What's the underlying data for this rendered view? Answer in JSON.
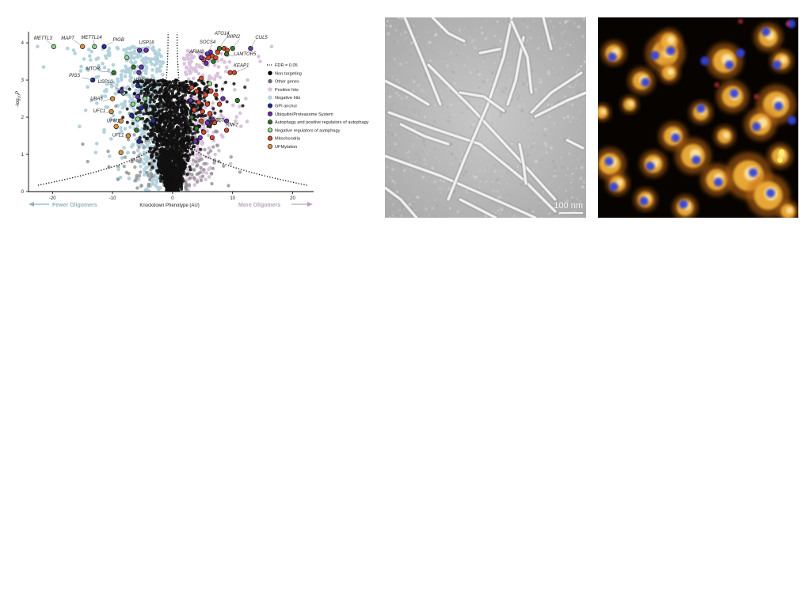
{
  "figure": {
    "panel_volcano": {
      "xlabel": "Knockdown Phenotype (AU)",
      "ylabel_prefix": "-log",
      "ylabel_sub": "10",
      "ylabel_suffix": "P",
      "arrow_left_label": "Fewer Oligomers",
      "arrow_right_label": "More Oligomers",
      "threshold_label": "FDR = 0.05"
    },
    "panel_em": {
      "scalebar_label": "100 nm"
    }
  },
  "colors": {
    "non_targeting": "#000000",
    "other_genes": "#6e6e6e",
    "positive_hits": "#d9c2dc",
    "negative_hits": "#b3d2dd",
    "gpi_anchor": "#1f2a9e",
    "ubiquitin": "#6b2fb3",
    "autophagy_pos": "#2f7a2b",
    "autophagy_neg": "#8fd98a",
    "mitochondria": "#d9472b",
    "ufmylation": "#e8913a",
    "arrow_left": "#8fb3bf",
    "arrow_right": "#b8a3bd"
  },
  "chart_data": {
    "type": "scatter",
    "xlabel": "Knockdown Phenotype (AU)",
    "ylabel": "-log10 P",
    "xlim": [
      -24,
      23.5
    ],
    "ylim": [
      0,
      4.3
    ],
    "xticks": [
      -20,
      -10,
      0,
      10,
      20
    ],
    "yticks": [
      0,
      1,
      2,
      3,
      4
    ],
    "grid": false,
    "legend_position": "right",
    "legend": [
      {
        "key": "fdr",
        "label": "FDR = 0.05",
        "style": "dotted-line"
      },
      {
        "key": "non_targeting",
        "label": "Non-targeting"
      },
      {
        "key": "other_genes",
        "label": "Other genes"
      },
      {
        "key": "positive_hits",
        "label": "Positive hits"
      },
      {
        "key": "negative_hits",
        "label": "Negative hits"
      },
      {
        "key": "gpi_anchor",
        "label": "GPI anchor"
      },
      {
        "key": "ubiquitin",
        "label": "Ubiquitin/Proteasome System"
      },
      {
        "key": "autophagy_pos",
        "label": "Autophagy and positive regulators of autophagy"
      },
      {
        "key": "autophagy_neg",
        "label": "Negative regulators of autophagy"
      },
      {
        "key": "mitochondria",
        "label": "Mitochondria"
      },
      {
        "key": "ufmylation",
        "label": "UFMylation"
      }
    ],
    "labeled_genes": [
      {
        "gene": "METTL3",
        "x": -19.8,
        "y": 3.9,
        "category": "autophagy_neg"
      },
      {
        "gene": "MAPT",
        "x": -15.0,
        "y": 3.9,
        "category": "ufmylation"
      },
      {
        "gene": "METTL14",
        "x": -13.0,
        "y": 3.9,
        "category": "autophagy_neg"
      },
      {
        "gene": "PIGB",
        "x": -11.4,
        "y": 3.9,
        "category": "gpi_anchor"
      },
      {
        "gene": "USP16",
        "x": -4.4,
        "y": 3.8,
        "category": "ubiquitin"
      },
      {
        "gene": "MTOR",
        "x": -9.8,
        "y": 3.2,
        "category": "autophagy_pos"
      },
      {
        "gene": "USP22",
        "x": -5.6,
        "y": 3.2,
        "category": "ubiquitin"
      },
      {
        "gene": "PIGS",
        "x": -13.3,
        "y": 3.0,
        "category": "gpi_anchor"
      },
      {
        "gene": "USP10",
        "x": -8.5,
        "y": 2.7,
        "category": "ubiquitin"
      },
      {
        "gene": "UBA5",
        "x": -10.0,
        "y": 2.5,
        "category": "ufmylation"
      },
      {
        "gene": "UFC1",
        "x": -10.2,
        "y": 2.15,
        "category": "ufmylation"
      },
      {
        "gene": "UFM1",
        "x": -8.6,
        "y": 1.9,
        "category": "ufmylation"
      },
      {
        "gene": "UFL1",
        "x": -7.4,
        "y": 1.5,
        "category": "ufmylation"
      },
      {
        "gene": "ARIH2",
        "x": 4.8,
        "y": 3.6,
        "category": "ubiquitin"
      },
      {
        "gene": "SOCS4",
        "x": 5.8,
        "y": 3.7,
        "category": "ubiquitin"
      },
      {
        "gene": "ATG14",
        "x": 7.8,
        "y": 3.85,
        "category": "autophagy_pos"
      },
      {
        "gene": "WIPI2",
        "x": 10.0,
        "y": 3.85,
        "category": "autophagy_pos"
      },
      {
        "gene": "CUL5",
        "x": 13.0,
        "y": 3.85,
        "category": "ubiquitin"
      },
      {
        "gene": "LAMTOR5",
        "x": 9.0,
        "y": 3.7,
        "category": "autophagy_pos"
      },
      {
        "gene": "KEAP1",
        "x": 10.3,
        "y": 3.2,
        "category": "mitochondria"
      },
      {
        "gene": "SOCS5",
        "x": 6.6,
        "y": 1.95,
        "category": "ubiquitin"
      },
      {
        "gene": "RNF7",
        "x": 9.0,
        "y": 1.9,
        "category": "ubiquitin"
      }
    ],
    "highlighted_points": [
      {
        "x": -5.5,
        "y": 3.8,
        "category": "ubiquitin"
      },
      {
        "x": -5.2,
        "y": 3.35,
        "category": "ubiquitin"
      },
      {
        "x": -6.5,
        "y": 3.35,
        "category": "autophagy_pos"
      },
      {
        "x": -7.6,
        "y": 3.6,
        "category": "autophagy_neg"
      },
      {
        "x": -5.8,
        "y": 2.85,
        "category": "gpi_anchor"
      },
      {
        "x": -8.2,
        "y": 2.65,
        "category": "autophagy_neg"
      },
      {
        "x": -5.8,
        "y": 2.55,
        "category": "ubiquitin"
      },
      {
        "x": -4.6,
        "y": 2.5,
        "category": "autophagy_neg"
      },
      {
        "x": -6.6,
        "y": 2.35,
        "category": "autophagy_neg"
      },
      {
        "x": -5.2,
        "y": 2.25,
        "category": "gpi_anchor"
      },
      {
        "x": -6.8,
        "y": 2.05,
        "category": "gpi_anchor"
      },
      {
        "x": -5.8,
        "y": 1.95,
        "category": "autophagy_neg"
      },
      {
        "x": -3.2,
        "y": 1.9,
        "category": "gpi_anchor"
      },
      {
        "x": -9.4,
        "y": 1.75,
        "category": "ufmylation"
      },
      {
        "x": -6.0,
        "y": 1.65,
        "category": "autophagy_pos"
      },
      {
        "x": -5.6,
        "y": 1.35,
        "category": "gpi_anchor"
      },
      {
        "x": -8.6,
        "y": 1.05,
        "category": "ufmylation"
      },
      {
        "x": 5.2,
        "y": 3.55,
        "category": "mitochondria"
      },
      {
        "x": 6.0,
        "y": 3.6,
        "category": "mitochondria"
      },
      {
        "x": 6.6,
        "y": 3.65,
        "category": "mitochondria"
      },
      {
        "x": 7.2,
        "y": 3.6,
        "category": "mitochondria"
      },
      {
        "x": 6.3,
        "y": 3.75,
        "category": "ubiquitin"
      },
      {
        "x": 7.5,
        "y": 3.75,
        "category": "mitochondria"
      },
      {
        "x": 8.6,
        "y": 3.85,
        "category": "mitochondria"
      },
      {
        "x": 9.1,
        "y": 3.8,
        "category": "mitochondria"
      },
      {
        "x": 5.6,
        "y": 3.45,
        "category": "ubiquitin"
      },
      {
        "x": 6.8,
        "y": 3.5,
        "category": "autophagy_pos"
      },
      {
        "x": 9.6,
        "y": 3.2,
        "category": "mitochondria"
      },
      {
        "x": 4.8,
        "y": 3.05,
        "category": "mitochondria"
      },
      {
        "x": 6.2,
        "y": 2.9,
        "category": "autophagy_neg"
      },
      {
        "x": 3.2,
        "y": 2.8,
        "category": "mitochondria"
      },
      {
        "x": 4.0,
        "y": 2.7,
        "category": "mitochondria"
      },
      {
        "x": 5.5,
        "y": 2.6,
        "category": "mitochondria"
      },
      {
        "x": 6.4,
        "y": 2.7,
        "category": "mitochondria"
      },
      {
        "x": 7.2,
        "y": 2.6,
        "category": "mitochondria"
      },
      {
        "x": 8.4,
        "y": 2.5,
        "category": "ubiquitin"
      },
      {
        "x": 10.8,
        "y": 2.45,
        "category": "autophagy_pos"
      },
      {
        "x": 3.0,
        "y": 2.45,
        "category": "ubiquitin"
      },
      {
        "x": 4.4,
        "y": 2.4,
        "category": "mitochondria"
      },
      {
        "x": 5.8,
        "y": 2.35,
        "category": "mitochondria"
      },
      {
        "x": 7.8,
        "y": 2.35,
        "category": "mitochondria"
      },
      {
        "x": 3.6,
        "y": 2.2,
        "category": "mitochondria"
      },
      {
        "x": 5.0,
        "y": 2.15,
        "category": "mitochondria"
      },
      {
        "x": 6.2,
        "y": 2.1,
        "category": "mitochondria"
      },
      {
        "x": 3.2,
        "y": 2.0,
        "category": "autophagy_pos"
      },
      {
        "x": 4.8,
        "y": 1.9,
        "category": "mitochondria"
      },
      {
        "x": 5.8,
        "y": 1.85,
        "category": "ubiquitin"
      },
      {
        "x": 7.0,
        "y": 1.85,
        "category": "mitochondria"
      },
      {
        "x": 4.0,
        "y": 1.7,
        "category": "autophagy_pos"
      },
      {
        "x": 5.2,
        "y": 1.6,
        "category": "mitochondria"
      },
      {
        "x": 9.0,
        "y": 1.65,
        "category": "mitochondria"
      },
      {
        "x": 4.6,
        "y": 1.45,
        "category": "ubiquitin"
      },
      {
        "x": 6.6,
        "y": 1.45,
        "category": "mitochondria"
      },
      {
        "x": 3.8,
        "y": 1.35,
        "category": "ubiquitin"
      }
    ]
  }
}
